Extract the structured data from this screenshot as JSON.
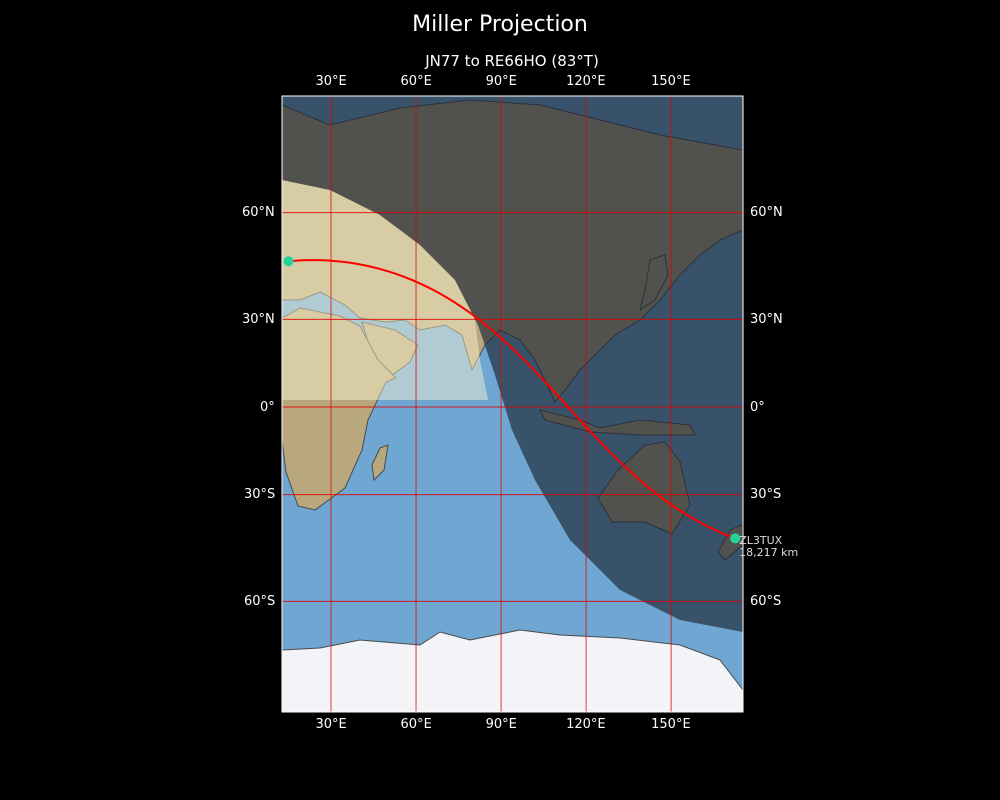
{
  "title": "Miller Projection",
  "subtitle": "JN77 to RE66HO (83°T)",
  "map": {
    "projection": "miller",
    "extent": {
      "lon": [
        12.7,
        175
      ],
      "lat": [
        -81.5,
        82
      ]
    },
    "lon_ticks": [
      {
        "value": 30,
        "label": "30°E"
      },
      {
        "value": 60,
        "label": "60°E"
      },
      {
        "value": 90,
        "label": "90°E"
      },
      {
        "value": 120,
        "label": "120°E"
      },
      {
        "value": 150,
        "label": "150°E"
      }
    ],
    "lat_ticks": [
      {
        "value": 60,
        "label": "60°N"
      },
      {
        "value": 30,
        "label": "30°N"
      },
      {
        "value": 0,
        "label": "0°"
      },
      {
        "value": -30,
        "label": "30°S"
      },
      {
        "value": -60,
        "label": "60°S"
      }
    ],
    "gridline_color": "#e00000",
    "path_color": "#ff0000",
    "marker_color": "#22d39a",
    "ocean_color": "#6fa6d2",
    "night_shading": true,
    "start": {
      "grid": "JN77",
      "lon": 15,
      "lat": 47.5
    },
    "end": {
      "grid": "RE66HO",
      "lon": 172.6,
      "lat": -43.4,
      "callsign": "ZL3TUX",
      "distance": "18,217 km"
    }
  }
}
